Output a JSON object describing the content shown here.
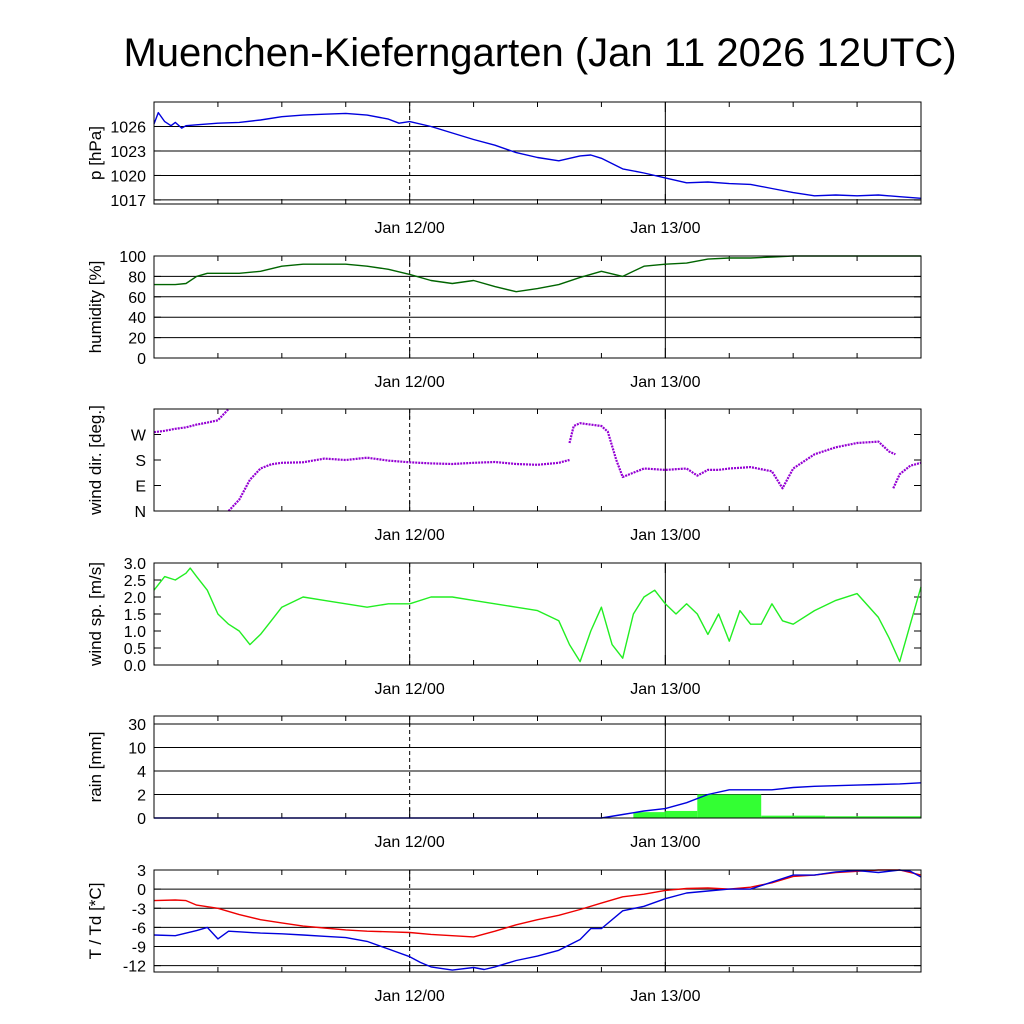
{
  "title": "Muenchen-Kieferngarten (Jan 11 2026 12UTC)",
  "x_ticks": [
    "Jan 12/00",
    "Jan 13/00"
  ],
  "colors": {
    "pressure": "#0000dd",
    "humidity": "#006400",
    "wind_dir": "#9400d3",
    "wind_speed": "#22ee22",
    "rain_bar": "#33ff33",
    "rain_cum": "#0000dd",
    "temperature": "#ee0000",
    "dewpoint": "#0000dd"
  },
  "chart_data": [
    {
      "type": "line",
      "name": "pressure",
      "ylabel": "p [hPa]",
      "ylim": [
        1016.5,
        1029
      ],
      "yticks": [
        1017,
        1020,
        1023,
        1026
      ],
      "ytick_labels": [
        "1017",
        "1020",
        "1023",
        "1026"
      ],
      "xlim": [
        0,
        36
      ],
      "x_major": [
        12,
        24
      ],
      "grid": true,
      "series": [
        {
          "name": "p",
          "color": "pressure",
          "x": [
            0,
            0.2,
            0.5,
            0.8,
            1,
            1.3,
            1.5,
            2,
            3,
            4,
            5,
            6,
            7,
            8,
            9,
            10,
            11,
            11.5,
            12,
            13,
            14,
            15,
            16,
            17,
            18,
            19,
            20,
            20.5,
            21,
            22,
            23,
            24,
            25,
            26,
            27,
            28,
            29,
            30,
            31,
            32,
            33,
            34,
            35,
            36
          ],
          "y": [
            1026.3,
            1027.7,
            1026.6,
            1026.1,
            1026.5,
            1025.8,
            1026.1,
            1026.2,
            1026.4,
            1026.5,
            1026.8,
            1027.2,
            1027.4,
            1027.5,
            1027.6,
            1027.4,
            1026.9,
            1026.4,
            1026.6,
            1026.0,
            1025.2,
            1024.4,
            1023.7,
            1022.8,
            1022.2,
            1021.8,
            1022.4,
            1022.5,
            1022.1,
            1020.8,
            1020.3,
            1019.7,
            1019.1,
            1019.2,
            1019.0,
            1018.9,
            1018.4,
            1017.9,
            1017.5,
            1017.6,
            1017.5,
            1017.6,
            1017.4,
            1017.2
          ]
        }
      ]
    },
    {
      "type": "line",
      "name": "humidity",
      "ylabel": "humidity [%]",
      "ylim": [
        0,
        100
      ],
      "yticks": [
        0,
        20,
        40,
        60,
        80,
        100
      ],
      "ytick_labels": [
        "0",
        "20",
        "40",
        "60",
        "80",
        "100"
      ],
      "xlim": [
        0,
        36
      ],
      "x_major": [
        12,
        24
      ],
      "grid": true,
      "series": [
        {
          "name": "humidity",
          "color": "humidity",
          "x": [
            0,
            1,
            1.5,
            2,
            2.5,
            3,
            4,
            5,
            6,
            7,
            8,
            9,
            10,
            11,
            12,
            13,
            14,
            15,
            16,
            17,
            18,
            19,
            20,
            21,
            22,
            23,
            24,
            25,
            26,
            27,
            28,
            29,
            30,
            31,
            32,
            33,
            34,
            35,
            36
          ],
          "y": [
            72,
            72,
            73,
            80,
            83,
            83,
            83,
            85,
            90,
            92,
            92,
            92,
            90,
            87,
            82,
            76,
            73,
            76,
            70,
            65,
            68,
            72,
            79,
            85,
            80,
            90,
            92,
            93,
            97,
            98,
            98,
            99,
            100,
            100,
            100,
            100,
            100,
            100,
            100
          ]
        }
      ]
    },
    {
      "type": "scatter",
      "name": "wind_direction",
      "ylabel": "wind dir. [deg.]",
      "ylim": [
        0,
        360
      ],
      "yticks": [
        0,
        90,
        180,
        270
      ],
      "ytick_labels": [
        "N",
        "E",
        "S",
        "W"
      ],
      "xlim": [
        0,
        36
      ],
      "x_major": [
        12,
        24
      ],
      "grid": false,
      "series": [
        {
          "name": "wind dir a",
          "color": "wind_dir",
          "x": [
            0,
            0.5,
            1,
            1.5,
            2,
            2.5,
            3,
            3.5
          ],
          "y": [
            278,
            283,
            290,
            295,
            305,
            312,
            320,
            360
          ]
        },
        {
          "name": "wind dir b",
          "color": "wind_dir",
          "x": [
            3.5,
            4,
            4.5,
            5,
            5.5,
            6,
            7,
            8,
            9,
            10,
            11,
            12,
            13,
            14,
            15,
            16,
            17,
            18,
            19,
            19.5
          ],
          "y": [
            0,
            40,
            110,
            150,
            165,
            170,
            172,
            185,
            180,
            188,
            178,
            172,
            168,
            166,
            170,
            173,
            166,
            163,
            170,
            180
          ]
        },
        {
          "name": "wind dir c",
          "color": "wind_dir",
          "x": [
            19.5,
            19.7,
            20,
            20.5,
            21,
            21.3,
            21.7,
            22,
            23,
            24,
            25,
            25.5,
            26,
            26.5,
            27,
            28,
            29,
            29.5,
            30,
            31,
            32,
            33,
            34,
            34.5,
            34.8
          ],
          "y": [
            240,
            300,
            310,
            305,
            300,
            280,
            180,
            120,
            150,
            145,
            150,
            125,
            145,
            145,
            150,
            155,
            140,
            80,
            150,
            200,
            225,
            240,
            245,
            210,
            200
          ]
        },
        {
          "name": "wind dir d",
          "color": "wind_dir",
          "x": [
            34.7,
            35,
            35.5,
            36
          ],
          "y": [
            80,
            130,
            160,
            170
          ]
        }
      ]
    },
    {
      "type": "line",
      "name": "wind_speed",
      "ylabel": "wind sp. [m/s]",
      "ylim": [
        0,
        3
      ],
      "yticks": [
        0,
        0.5,
        1,
        1.5,
        2,
        2.5,
        3
      ],
      "ytick_labels": [
        "0.0",
        "0.5",
        "1.0",
        "1.5",
        "2.0",
        "2.5",
        "3.0"
      ],
      "xlim": [
        0,
        36
      ],
      "x_major": [
        12,
        24
      ],
      "grid": false,
      "series": [
        {
          "name": "wind speed",
          "color": "wind_speed",
          "x": [
            0,
            0.5,
            1,
            1.5,
            1.7,
            2,
            2.5,
            3,
            3.5,
            4,
            4.5,
            5,
            5.5,
            6,
            7,
            8,
            9,
            10,
            11,
            12,
            13,
            14,
            15,
            16,
            17,
            18,
            19,
            19.5,
            20,
            20.5,
            21,
            21.5,
            22,
            22.5,
            23,
            23.5,
            24,
            24.5,
            25,
            25.5,
            26,
            26.5,
            27,
            27.5,
            28,
            28.5,
            29,
            29.5,
            30,
            31,
            32,
            33,
            34,
            34.5,
            35,
            35.5,
            36
          ],
          "y": [
            2.2,
            2.6,
            2.5,
            2.7,
            2.85,
            2.6,
            2.2,
            1.5,
            1.2,
            1.0,
            0.6,
            0.9,
            1.3,
            1.7,
            2.0,
            1.9,
            1.8,
            1.7,
            1.8,
            1.8,
            2.0,
            2.0,
            1.9,
            1.8,
            1.7,
            1.6,
            1.3,
            0.6,
            0.1,
            1.0,
            1.7,
            0.6,
            0.2,
            1.5,
            2.0,
            2.2,
            1.8,
            1.5,
            1.8,
            1.5,
            0.9,
            1.5,
            0.7,
            1.6,
            1.2,
            1.2,
            1.8,
            1.3,
            1.2,
            1.6,
            1.9,
            2.1,
            1.4,
            0.8,
            0.1,
            1.2,
            2.3
          ]
        }
      ]
    },
    {
      "type": "bar",
      "name": "rain",
      "ylabel": "rain [mm]",
      "yscale_ticks": [
        0,
        2,
        4,
        10,
        30
      ],
      "ytick_labels": [
        "0",
        "2",
        "4",
        "10",
        "30"
      ],
      "xlim": [
        0,
        36
      ],
      "x_major": [
        12,
        24
      ],
      "grid": true,
      "bars": [
        {
          "x0": 22.5,
          "x1": 24,
          "value": 0.5
        },
        {
          "x0": 24,
          "x1": 25.5,
          "value": 0.6
        },
        {
          "x0": 25.5,
          "x1": 28.5,
          "value": 2.0
        },
        {
          "x0": 28.5,
          "x1": 31.5,
          "value": 0.2
        },
        {
          "x0": 31.5,
          "x1": 36,
          "value": 0.15
        }
      ],
      "series": [
        {
          "name": "cumulative rain",
          "color": "rain_cum",
          "x": [
            0,
            21,
            22,
            23,
            24,
            25,
            26,
            27,
            28,
            29,
            30,
            31,
            32,
            33,
            34,
            35,
            36
          ],
          "y": [
            0,
            0,
            0.3,
            0.6,
            0.8,
            1.3,
            2.0,
            2.4,
            2.4,
            2.4,
            2.6,
            2.7,
            2.75,
            2.8,
            2.85,
            2.9,
            3.0
          ]
        }
      ]
    },
    {
      "type": "line",
      "name": "temperature_dewpoint",
      "ylabel": "T / Td [*C]",
      "ylim": [
        -13,
        3
      ],
      "yticks": [
        -12,
        -9,
        -6,
        -3,
        0,
        3
      ],
      "ytick_labels": [
        "-12",
        "-9",
        "-6",
        "-3",
        "0",
        "3"
      ],
      "xlim": [
        0,
        36
      ],
      "x_major": [
        12,
        24
      ],
      "grid": true,
      "series": [
        {
          "name": "T",
          "color": "temperature",
          "x": [
            0,
            1,
            1.5,
            2,
            3,
            4,
            5,
            6,
            7,
            8,
            9,
            10,
            11,
            12,
            13,
            14,
            15,
            16,
            17,
            18,
            19,
            20,
            21,
            22,
            23,
            24,
            25,
            26,
            27,
            28,
            29,
            30,
            31,
            32,
            33,
            34,
            35,
            36
          ],
          "y": [
            -1.8,
            -1.7,
            -1.8,
            -2.5,
            -3.0,
            -4.0,
            -4.8,
            -5.3,
            -5.8,
            -6.1,
            -6.4,
            -6.6,
            -6.7,
            -6.8,
            -7.1,
            -7.3,
            -7.5,
            -6.6,
            -5.6,
            -4.8,
            -4.1,
            -3.2,
            -2.2,
            -1.2,
            -0.8,
            -0.2,
            0.1,
            0.2,
            0.0,
            0.3,
            1.0,
            2.0,
            2.2,
            2.6,
            2.8,
            3.0,
            3.0,
            2.2
          ]
        },
        {
          "name": "Td",
          "color": "dewpoint",
          "x": [
            0,
            1,
            2,
            2.5,
            3,
            3.5,
            4,
            5,
            6,
            7,
            8,
            9,
            10,
            11,
            12,
            12.5,
            13,
            14,
            15,
            15.5,
            16,
            17,
            18,
            19,
            20,
            20.5,
            21,
            22,
            23,
            24,
            25,
            26,
            27,
            28,
            29,
            30,
            31,
            32,
            33,
            34,
            35,
            35.5,
            36
          ],
          "y": [
            -7.2,
            -7.3,
            -6.5,
            -6.0,
            -7.8,
            -6.6,
            -6.7,
            -6.9,
            -7.0,
            -7.2,
            -7.4,
            -7.6,
            -8.2,
            -9.4,
            -10.6,
            -11.5,
            -12.2,
            -12.7,
            -12.3,
            -12.6,
            -12.2,
            -11.2,
            -10.5,
            -9.6,
            -7.9,
            -6.2,
            -6.2,
            -3.4,
            -2.7,
            -1.5,
            -0.6,
            -0.3,
            0.0,
            0.0,
            1.1,
            2.2,
            2.2,
            2.7,
            2.9,
            2.6,
            3.0,
            2.8,
            1.9
          ]
        }
      ]
    }
  ]
}
